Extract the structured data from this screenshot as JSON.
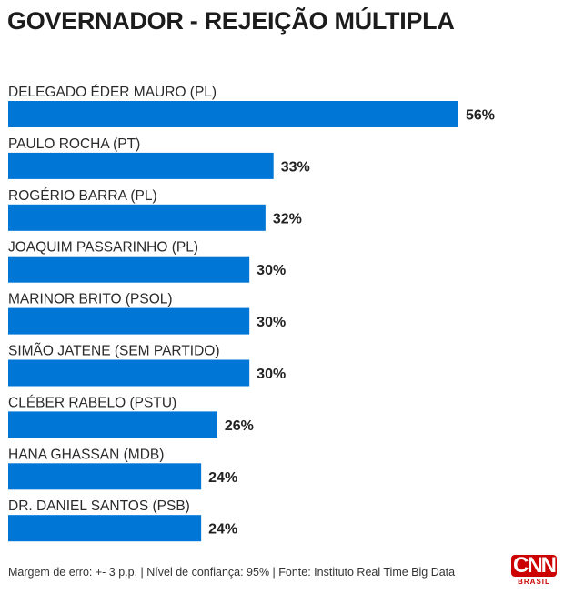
{
  "title": "GOVERNADOR - REJEIÇÃO MÚLTIPLA",
  "footer": "Margem de erro: +- 3 p.p. | Nível de confiança: 95% | Fonte: Instituto Real Time Big Data",
  "logo": {
    "main": "CNN",
    "sub": "BRASIL"
  },
  "colors": {
    "bar": "#0076d6",
    "logo": "#cc0000"
  },
  "chart_data": {
    "type": "bar",
    "orientation": "horizontal",
    "title": "GOVERNADOR - REJEIÇÃO MÚLTIPLA",
    "categories": [
      "DELEGADO ÉDER MAURO (PL)",
      "PAULO ROCHA (PT)",
      "ROGÉRIO BARRA (PL)",
      "JOAQUIM PASSARINHO (PL)",
      "MARINOR BRITO (PSOL)",
      "SIMÃO JATENE (SEM PARTIDO)",
      "CLÉBER RABELO (PSTU)",
      "HANA GHASSAN (MDB)",
      "DR. DANIEL SANTOS (PSB)"
    ],
    "values": [
      56,
      33,
      32,
      30,
      30,
      30,
      26,
      24,
      24
    ],
    "value_labels": [
      "56%",
      "33%",
      "32%",
      "30%",
      "30%",
      "30%",
      "26%",
      "24%",
      "24%"
    ],
    "unit": "%",
    "grid": false
  }
}
